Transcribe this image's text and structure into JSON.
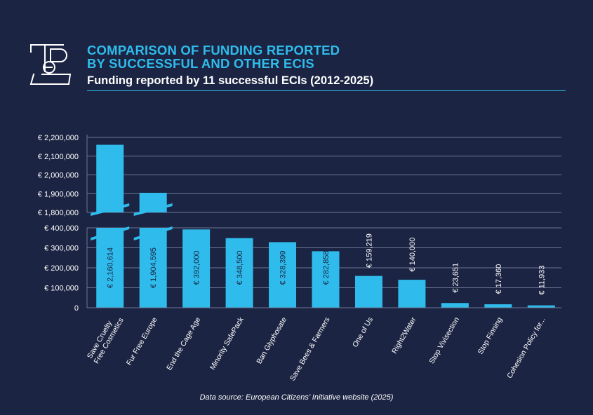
{
  "header": {
    "title_line1": "COMPARISON OF FUNDING REPORTED",
    "title_line2": "BY SUCCESSFUL AND OTHER ECIS",
    "subtitle": "Funding reported by 11 successful ECIs (2012-2025)"
  },
  "footer": {
    "source": "Data source: European Citizens’ Initiative website (2025)"
  },
  "colors": {
    "background": "#1b2442",
    "bar": "#2fbcec",
    "accent": "#2fbcec",
    "grid": "#6e7895",
    "text": "#ffffff",
    "bar_label": "#1b2442"
  },
  "chart_data": {
    "type": "bar",
    "title": "COMPARISON OF FUNDING REPORTED BY SUCCESSFUL AND OTHER ECIS",
    "subtitle": "Funding reported by 11 successful ECIs (2012-2025)",
    "xlabel": "",
    "ylabel": "",
    "axis_break": true,
    "grid": true,
    "categories": [
      "Save Cruelty Free Cosmetics",
      "Fur Free Europe",
      "End the Cage Age",
      "Minority SafePack",
      "Ban Glyphosate",
      "Save Bees & Farmers",
      "One of Us",
      "Right2Water",
      "Stop Vivisection",
      "Stop Finning",
      "Cohesion Policy for..."
    ],
    "category_label_lines": [
      [
        "Save Cruelty",
        "Free Cosmetics"
      ],
      [
        "Fur Free Europe"
      ],
      [
        "End the Cage Age"
      ],
      [
        "Minority SafePack"
      ],
      [
        "Ban Glyphosate"
      ],
      [
        "Save Bees & Farmers"
      ],
      [
        "One of Us"
      ],
      [
        "Right2Water"
      ],
      [
        "Stop Vivisection"
      ],
      [
        "Stop Finning"
      ],
      [
        "Cohesion Policy for..."
      ]
    ],
    "values": [
      2160614,
      1904595,
      392000,
      348500,
      328399,
      282858,
      159219,
      140000,
      23651,
      17360,
      11933
    ],
    "data_labels": [
      "€ 2,160,614",
      "€ 1,904,595",
      "€ 392,000",
      "€ 348,500",
      "€ 328,399",
      "€ 282,858",
      "€ 159,219",
      "€ 140,000",
      "€ 23,651",
      "€ 17,360",
      "€ 11,933"
    ],
    "lower_axis": {
      "ylim": [
        0,
        400000
      ],
      "ticks": [
        0,
        100000,
        200000,
        300000,
        400000
      ],
      "tick_labels": [
        "0",
        "€ 100,000",
        "€ 200,000",
        "€ 300,000",
        "€ 400,000"
      ]
    },
    "upper_axis": {
      "ylim": [
        1800000,
        2200000
      ],
      "ticks": [
        1800000,
        1900000,
        2000000,
        2100000,
        2200000
      ],
      "tick_labels": [
        "€ 1,800,000",
        "€ 1,900,000",
        "€ 2,000,000",
        "€ 2,100,000",
        "€ 2,200,000"
      ]
    },
    "source": "Data source: European Citizens’ Initiative website (2025)"
  }
}
